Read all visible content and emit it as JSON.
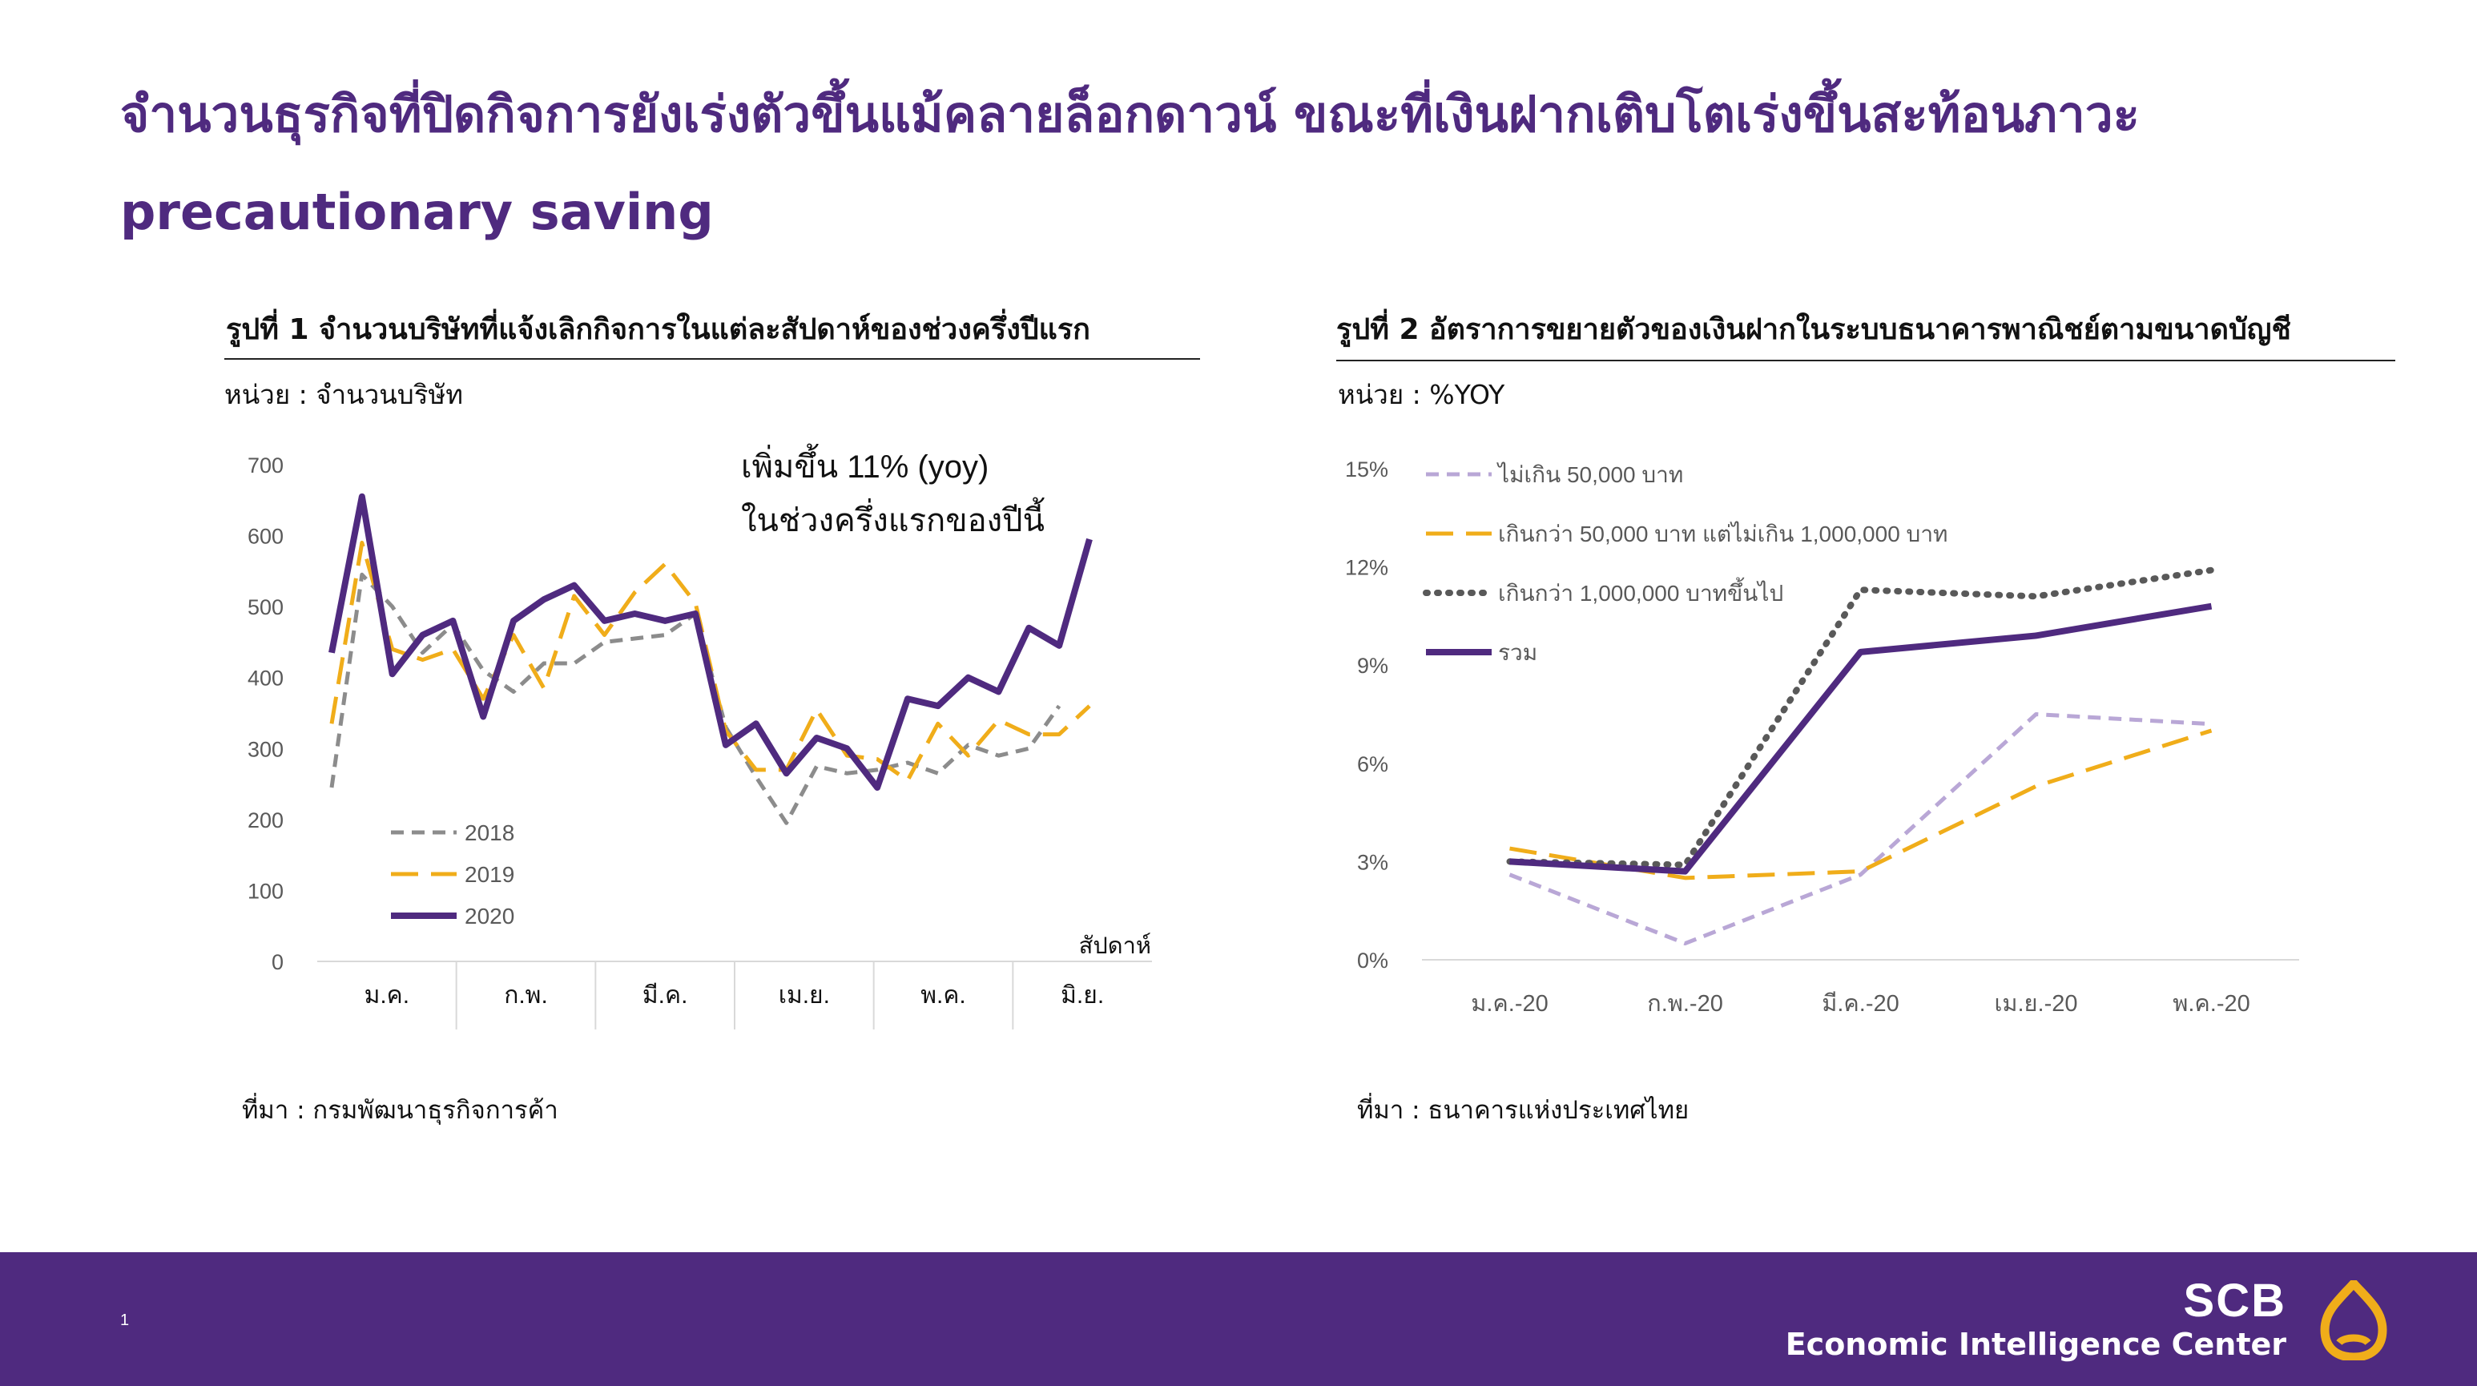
{
  "header": {
    "title_line1": "จำนวนธุรกิจที่ปิดกิจการยังเร่งตัวขึ้นแม้คลายล็อกดาวน์ ขณะที่เงินฝากเติบโตเร่งขึ้นสะท้อนภาวะ",
    "title_line2": "precautionary saving"
  },
  "colors": {
    "brand_purple": "#4f2a7f",
    "gold": "#f0ad1a",
    "gray": "#8c8c8c",
    "lavender": "#b9a7d6",
    "dark_dotted": "#595959"
  },
  "chart1": {
    "title": "รูปที่ 1 จำนวนบริษัทที่แจ้งเลิกกิจการในแต่ละสัปดาห์ของช่วงครึ่งปีแรก",
    "unit": "หน่วย : จำนวนบริษัท",
    "source": "ที่มา : กรมพัฒนาธุรกิจการค้า",
    "annotation_line1": "เพิ่มขึ้น  11% (yoy)",
    "annotation_line2": "ในช่วงครึ่งแรกของปีนี้",
    "xlabel": "สัปดาห์"
  },
  "chart2": {
    "title": "รูปที่ 2 อัตราการขยายตัวของเงินฝากในระบบธนาคารพาณิชย์ตามขนาดบัญชี",
    "unit": "หน่วย : %YOY",
    "source": "ที่มา : ธนาคารแห่งประเทศไทย"
  },
  "chart_data": [
    {
      "type": "line",
      "ylim": [
        0,
        700
      ],
      "yticks": [
        "0",
        "100",
        "200",
        "300",
        "400",
        "500",
        "600",
        "700"
      ],
      "month_groups": [
        "ม.ค.",
        "ก.พ.",
        "มี.ค.",
        "เม.ย.",
        "พ.ค.",
        "มิ.ย."
      ],
      "weeks_per_month": [
        4,
        4,
        4,
        4,
        4,
        4
      ],
      "xlabel": "สัปดาห์",
      "legend": "bottom-left",
      "series": [
        {
          "name": "2018",
          "style": "dashed",
          "color": "#8c8c8c",
          "values": [
            245,
            545,
            500,
            435,
            475,
            410,
            380,
            420,
            420,
            450,
            455,
            460,
            490,
            330,
            260,
            195,
            275,
            265,
            270,
            280,
            265,
            305,
            290,
            300,
            360
          ]
        },
        {
          "name": "2019",
          "style": "longdash",
          "color": "#f0ad1a",
          "values": [
            335,
            590,
            440,
            425,
            440,
            370,
            460,
            385,
            515,
            460,
            520,
            560,
            505,
            325,
            270,
            270,
            355,
            290,
            285,
            255,
            335,
            290,
            340,
            320,
            320,
            360
          ]
        },
        {
          "name": "2020",
          "style": "solid",
          "color": "#4f2a7f",
          "values": [
            435,
            655,
            405,
            460,
            480,
            345,
            480,
            510,
            530,
            480,
            490,
            480,
            490,
            305,
            335,
            265,
            315,
            300,
            245,
            370,
            360,
            400,
            380,
            470,
            445,
            595
          ]
        }
      ]
    },
    {
      "type": "line",
      "ylim": [
        0,
        15
      ],
      "yticks": [
        "0%",
        "3%",
        "6%",
        "9%",
        "12%",
        "15%"
      ],
      "categories": [
        "ม.ค.-20",
        "ก.พ.-20",
        "มี.ค.-20",
        "เม.ย.-20",
        "พ.ค.-20"
      ],
      "legend": "top-left",
      "series": [
        {
          "name": "ไม่เกิน 50,000 บาท",
          "style": "dashed",
          "color": "#b9a7d6",
          "values": [
            2.6,
            0.5,
            2.6,
            7.5,
            7.2
          ]
        },
        {
          "name": "เกินกว่า 50,000 บาท แต่ไม่เกิน 1,000,000 บาท",
          "style": "longdash",
          "color": "#f0ad1a",
          "values": [
            3.4,
            2.5,
            2.7,
            5.3,
            7.0
          ]
        },
        {
          "name": "เกินกว่า 1,000,000 บาทขึ้นไป",
          "style": "dotted",
          "color": "#595959",
          "values": [
            3.0,
            2.9,
            11.3,
            11.1,
            11.9
          ]
        },
        {
          "name": "รวม",
          "style": "solid",
          "color": "#4f2a7f",
          "values": [
            3.0,
            2.7,
            9.4,
            9.9,
            10.8
          ]
        }
      ]
    }
  ],
  "footer": {
    "page_number": "1",
    "brand": "SCB",
    "brand_sub": "Economic Intelligence Center"
  }
}
